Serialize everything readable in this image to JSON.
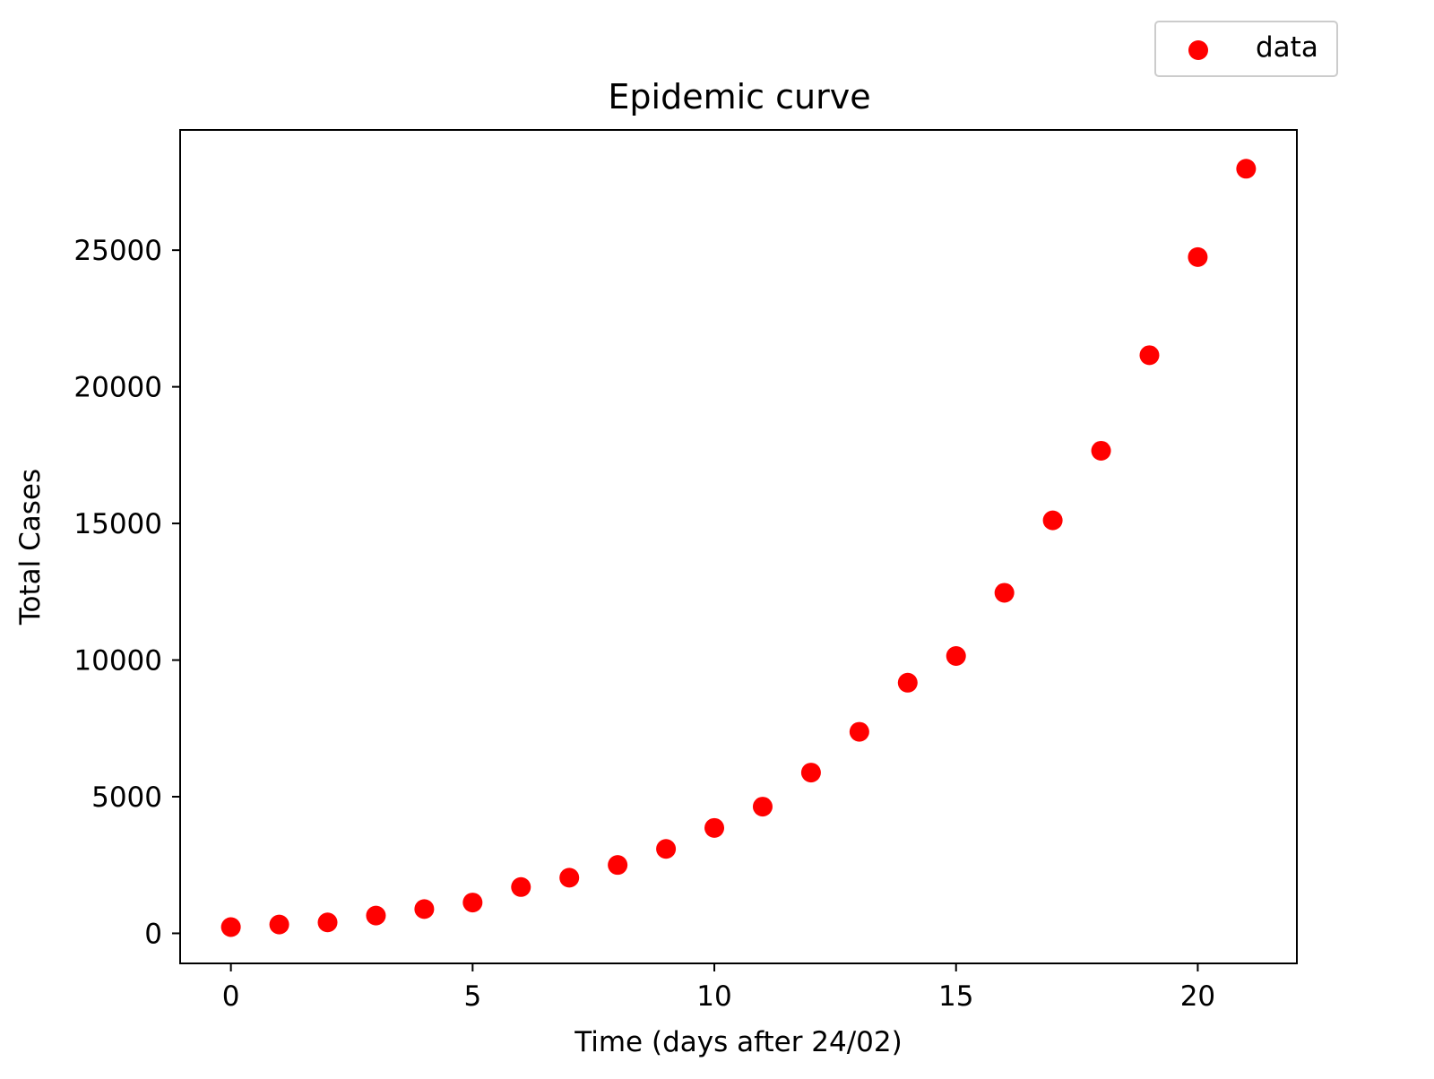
{
  "chart_data": {
    "type": "scatter",
    "title": "Epidemic curve",
    "xlabel": "Time (days after 24/02)",
    "ylabel": "Total Cases",
    "xlim": [
      -1.05,
      22.05
    ],
    "ylim": [
      -1100,
      29400
    ],
    "xticks": [
      0,
      5,
      10,
      15,
      20
    ],
    "yticks": [
      0,
      5000,
      10000,
      15000,
      20000,
      25000
    ],
    "grid": false,
    "legend_position": "upper-right-outside",
    "series": [
      {
        "name": "data",
        "color": "#ff0000",
        "marker": "circle",
        "x": [
          0,
          1,
          2,
          3,
          4,
          5,
          6,
          7,
          8,
          9,
          10,
          11,
          12,
          13,
          14,
          15,
          16,
          17,
          18,
          19,
          20,
          21
        ],
        "y": [
          229,
          322,
          400,
          650,
          888,
          1128,
          1694,
          2036,
          2502,
          3089,
          3858,
          4636,
          5883,
          7375,
          9172,
          10149,
          12462,
          15113,
          17660,
          21157,
          24747,
          27980
        ]
      }
    ]
  }
}
